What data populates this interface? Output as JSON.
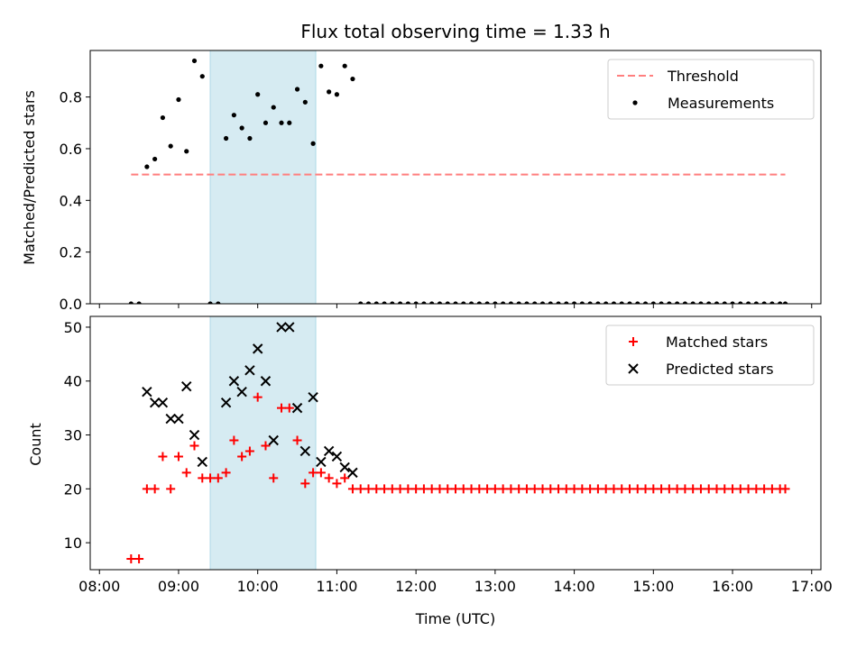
{
  "chart_data": [
    {
      "type": "scatter",
      "title": "Flux total observing time = 1.33 h",
      "xlabel": "",
      "ylabel": "Matched/Predicted stars",
      "xlim": [
        "08:00",
        "17:00"
      ],
      "ylim": [
        0,
        0.98
      ],
      "yticks": [
        0.0,
        0.2,
        0.4,
        0.6,
        0.8
      ],
      "ytick_labels": [
        "0.0",
        "0.2",
        "0.4",
        "0.6",
        "0.8"
      ],
      "shaded_interval": {
        "start": "09:24",
        "end": "10:44",
        "color": "#add8e6"
      },
      "legend": {
        "placement": "upper right",
        "entries": [
          "Threshold",
          "Measurements"
        ]
      },
      "threshold": {
        "name": "Threshold",
        "value": 0.5,
        "x_start": "08:24",
        "x_end": "16:40",
        "color": "#ff7f7f",
        "style": "dashed"
      },
      "series": [
        {
          "name": "Measurements",
          "color": "#000000",
          "marker": "dot",
          "points": [
            [
              "08:24",
              0.0
            ],
            [
              "08:30",
              0.0
            ],
            [
              "08:36",
              0.53
            ],
            [
              "08:42",
              0.56
            ],
            [
              "08:48",
              0.72
            ],
            [
              "08:54",
              0.61
            ],
            [
              "09:00",
              0.79
            ],
            [
              "09:06",
              0.59
            ],
            [
              "09:12",
              0.94
            ],
            [
              "09:18",
              0.88
            ],
            [
              "09:24",
              0.0
            ],
            [
              "09:30",
              0.0
            ],
            [
              "09:36",
              0.64
            ],
            [
              "09:42",
              0.73
            ],
            [
              "09:48",
              0.68
            ],
            [
              "09:54",
              0.64
            ],
            [
              "10:00",
              0.81
            ],
            [
              "10:06",
              0.7
            ],
            [
              "10:12",
              0.76
            ],
            [
              "10:18",
              0.7
            ],
            [
              "10:24",
              0.7
            ],
            [
              "10:30",
              0.83
            ],
            [
              "10:36",
              0.78
            ],
            [
              "10:42",
              0.62
            ],
            [
              "10:48",
              0.92
            ],
            [
              "10:54",
              0.82
            ],
            [
              "11:00",
              0.81
            ],
            [
              "11:06",
              0.92
            ],
            [
              "11:12",
              0.87
            ],
            [
              "11:18",
              0.0
            ],
            [
              "11:24",
              0.0
            ],
            [
              "11:30",
              0.0
            ],
            [
              "11:36",
              0.0
            ],
            [
              "11:42",
              0.0
            ],
            [
              "11:48",
              0.0
            ],
            [
              "11:54",
              0.0
            ],
            [
              "12:00",
              0.0
            ],
            [
              "12:06",
              0.0
            ],
            [
              "12:12",
              0.0
            ],
            [
              "12:18",
              0.0
            ],
            [
              "12:24",
              0.0
            ],
            [
              "12:30",
              0.0
            ],
            [
              "12:36",
              0.0
            ],
            [
              "12:42",
              0.0
            ],
            [
              "12:48",
              0.0
            ],
            [
              "12:54",
              0.0
            ],
            [
              "13:00",
              0.0
            ],
            [
              "13:06",
              0.0
            ],
            [
              "13:12",
              0.0
            ],
            [
              "13:18",
              0.0
            ],
            [
              "13:24",
              0.0
            ],
            [
              "13:30",
              0.0
            ],
            [
              "13:36",
              0.0
            ],
            [
              "13:42",
              0.0
            ],
            [
              "13:48",
              0.0
            ],
            [
              "13:54",
              0.0
            ],
            [
              "14:00",
              0.0
            ],
            [
              "14:06",
              0.0
            ],
            [
              "14:12",
              0.0
            ],
            [
              "14:18",
              0.0
            ],
            [
              "14:24",
              0.0
            ],
            [
              "14:30",
              0.0
            ],
            [
              "14:36",
              0.0
            ],
            [
              "14:42",
              0.0
            ],
            [
              "14:48",
              0.0
            ],
            [
              "14:54",
              0.0
            ],
            [
              "15:00",
              0.0
            ],
            [
              "15:06",
              0.0
            ],
            [
              "15:12",
              0.0
            ],
            [
              "15:18",
              0.0
            ],
            [
              "15:24",
              0.0
            ],
            [
              "15:30",
              0.0
            ],
            [
              "15:36",
              0.0
            ],
            [
              "15:42",
              0.0
            ],
            [
              "15:48",
              0.0
            ],
            [
              "15:54",
              0.0
            ],
            [
              "16:00",
              0.0
            ],
            [
              "16:06",
              0.0
            ],
            [
              "16:12",
              0.0
            ],
            [
              "16:18",
              0.0
            ],
            [
              "16:24",
              0.0
            ],
            [
              "16:30",
              0.0
            ],
            [
              "16:36",
              0.0
            ],
            [
              "16:40",
              0.0
            ]
          ]
        }
      ]
    },
    {
      "type": "scatter",
      "title": "",
      "xlabel": "Time (UTC)",
      "ylabel": "Count",
      "xlim": [
        "08:00",
        "17:00"
      ],
      "xticks": [
        "08:00",
        "09:00",
        "10:00",
        "11:00",
        "12:00",
        "13:00",
        "14:00",
        "15:00",
        "16:00",
        "17:00"
      ],
      "ylim": [
        5,
        52
      ],
      "yticks": [
        10,
        20,
        30,
        40,
        50
      ],
      "ytick_labels": [
        "10",
        "20",
        "30",
        "40",
        "50"
      ],
      "shaded_interval": {
        "start": "09:24",
        "end": "10:44",
        "color": "#add8e6"
      },
      "legend": {
        "placement": "upper right",
        "entries": [
          "Matched stars",
          "Predicted stars"
        ]
      },
      "series": [
        {
          "name": "Matched stars",
          "color": "#ff0000",
          "marker": "plus",
          "points": [
            [
              "08:24",
              7
            ],
            [
              "08:30",
              7
            ],
            [
              "08:36",
              20
            ],
            [
              "08:42",
              20
            ],
            [
              "08:48",
              26
            ],
            [
              "08:54",
              20
            ],
            [
              "09:00",
              26
            ],
            [
              "09:06",
              23
            ],
            [
              "09:12",
              28
            ],
            [
              "09:18",
              22
            ],
            [
              "09:24",
              22
            ],
            [
              "09:30",
              22
            ],
            [
              "09:36",
              23
            ],
            [
              "09:42",
              29
            ],
            [
              "09:48",
              26
            ],
            [
              "09:54",
              27
            ],
            [
              "10:00",
              37
            ],
            [
              "10:06",
              28
            ],
            [
              "10:12",
              22
            ],
            [
              "10:18",
              35
            ],
            [
              "10:24",
              35
            ],
            [
              "10:30",
              29
            ],
            [
              "10:36",
              21
            ],
            [
              "10:42",
              23
            ],
            [
              "10:48",
              23
            ],
            [
              "10:54",
              22
            ],
            [
              "11:00",
              21
            ],
            [
              "11:06",
              22
            ],
            [
              "11:12",
              20
            ],
            [
              "11:18",
              20
            ],
            [
              "11:24",
              20
            ],
            [
              "11:30",
              20
            ],
            [
              "11:36",
              20
            ],
            [
              "11:42",
              20
            ],
            [
              "11:48",
              20
            ],
            [
              "11:54",
              20
            ],
            [
              "12:00",
              20
            ],
            [
              "12:06",
              20
            ],
            [
              "12:12",
              20
            ],
            [
              "12:18",
              20
            ],
            [
              "12:24",
              20
            ],
            [
              "12:30",
              20
            ],
            [
              "12:36",
              20
            ],
            [
              "12:42",
              20
            ],
            [
              "12:48",
              20
            ],
            [
              "12:54",
              20
            ],
            [
              "13:00",
              20
            ],
            [
              "13:06",
              20
            ],
            [
              "13:12",
              20
            ],
            [
              "13:18",
              20
            ],
            [
              "13:24",
              20
            ],
            [
              "13:30",
              20
            ],
            [
              "13:36",
              20
            ],
            [
              "13:42",
              20
            ],
            [
              "13:48",
              20
            ],
            [
              "13:54",
              20
            ],
            [
              "14:00",
              20
            ],
            [
              "14:06",
              20
            ],
            [
              "14:12",
              20
            ],
            [
              "14:18",
              20
            ],
            [
              "14:24",
              20
            ],
            [
              "14:30",
              20
            ],
            [
              "14:36",
              20
            ],
            [
              "14:42",
              20
            ],
            [
              "14:48",
              20
            ],
            [
              "14:54",
              20
            ],
            [
              "15:00",
              20
            ],
            [
              "15:06",
              20
            ],
            [
              "15:12",
              20
            ],
            [
              "15:18",
              20
            ],
            [
              "15:24",
              20
            ],
            [
              "15:30",
              20
            ],
            [
              "15:36",
              20
            ],
            [
              "15:42",
              20
            ],
            [
              "15:48",
              20
            ],
            [
              "15:54",
              20
            ],
            [
              "16:00",
              20
            ],
            [
              "16:06",
              20
            ],
            [
              "16:12",
              20
            ],
            [
              "16:18",
              20
            ],
            [
              "16:24",
              20
            ],
            [
              "16:30",
              20
            ],
            [
              "16:36",
              20
            ],
            [
              "16:40",
              20
            ]
          ]
        },
        {
          "name": "Predicted stars",
          "color": "#000000",
          "marker": "x",
          "points": [
            [
              "08:36",
              38
            ],
            [
              "08:42",
              36
            ],
            [
              "08:48",
              36
            ],
            [
              "08:54",
              33
            ],
            [
              "09:00",
              33
            ],
            [
              "09:06",
              39
            ],
            [
              "09:12",
              30
            ],
            [
              "09:18",
              25
            ],
            [
              "09:36",
              36
            ],
            [
              "09:42",
              40
            ],
            [
              "09:48",
              38
            ],
            [
              "09:54",
              42
            ],
            [
              "10:00",
              46
            ],
            [
              "10:06",
              40
            ],
            [
              "10:12",
              29
            ],
            [
              "10:18",
              50
            ],
            [
              "10:24",
              50
            ],
            [
              "10:30",
              35
            ],
            [
              "10:36",
              27
            ],
            [
              "10:42",
              37
            ],
            [
              "10:48",
              25
            ],
            [
              "10:54",
              27
            ],
            [
              "11:00",
              26
            ],
            [
              "11:06",
              24
            ],
            [
              "11:12",
              23
            ]
          ]
        }
      ]
    }
  ]
}
